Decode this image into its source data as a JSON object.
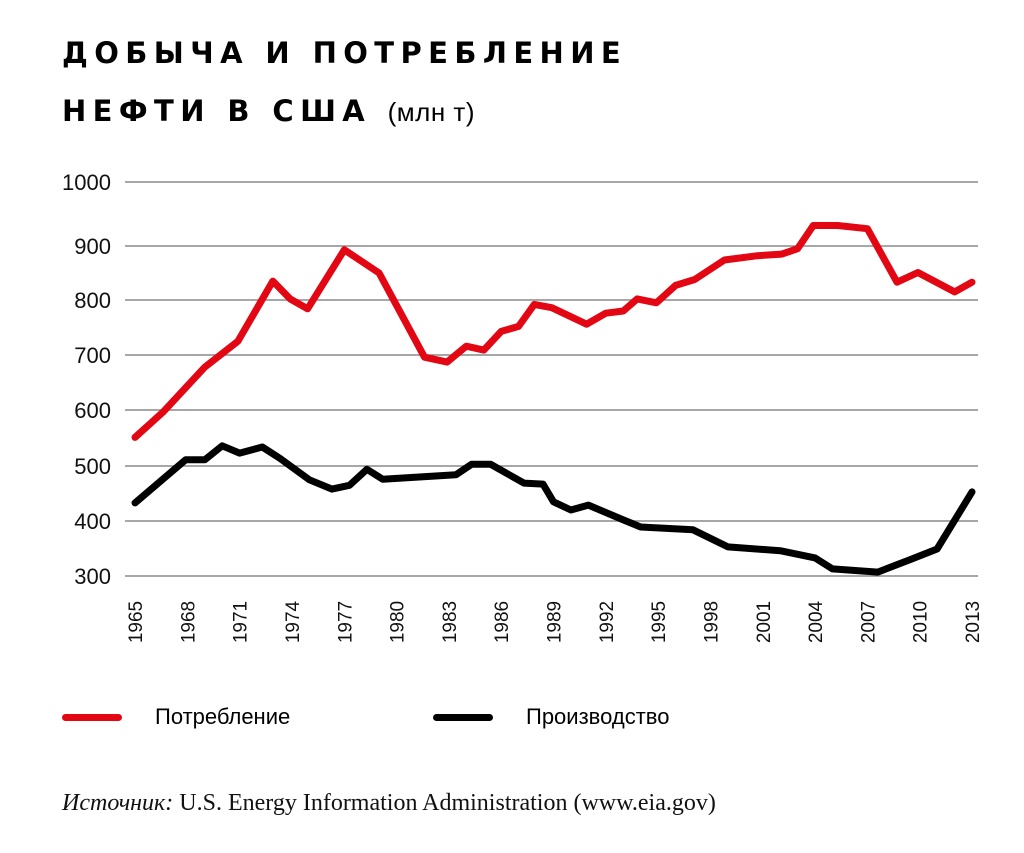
{
  "title": {
    "line1": "ДОБЫЧА И ПОТРЕБЛЕНИЕ",
    "line2": "НЕФТИ В США",
    "unit": "(млн т)"
  },
  "source": {
    "lead": "Источник:",
    "text": " U.S. Energy Information Administration (www.eia.gov)"
  },
  "colors": {
    "consumption": "#e30613",
    "production": "#000000",
    "grid": "#8a8a8a"
  },
  "chart_data": {
    "type": "line",
    "title": "Добыча и потребление нефти в США (млн т)",
    "xlabel": "",
    "ylabel": "",
    "xlim": [
      1965,
      2013
    ],
    "ylim": [
      300,
      1000
    ],
    "grid": true,
    "legend_position": "bottom",
    "y_ticks": [
      1000,
      900,
      800,
      700,
      600,
      500,
      400,
      300
    ],
    "x_ticks": [
      1965,
      1968,
      1971,
      1974,
      1977,
      1980,
      1983,
      1986,
      1989,
      1992,
      1995,
      1998,
      2001,
      2004,
      2007,
      2010,
      2013
    ],
    "series": [
      {
        "name": "Потребление",
        "color": "#e30613",
        "points": [
          [
            1965,
            551
          ],
          [
            1966.6,
            596
          ],
          [
            1969,
            678
          ],
          [
            1970.9,
            725
          ],
          [
            1972.9,
            835
          ],
          [
            1973.9,
            802
          ],
          [
            1974.9,
            784
          ],
          [
            1977,
            893
          ],
          [
            1979,
            850
          ],
          [
            1981.6,
            696
          ],
          [
            1982.9,
            687
          ],
          [
            1984,
            716
          ],
          [
            1985,
            709
          ],
          [
            1986,
            743
          ],
          [
            1987,
            752
          ],
          [
            1987.9,
            792
          ],
          [
            1988.9,
            786
          ],
          [
            1990.9,
            756
          ],
          [
            1992,
            776
          ],
          [
            1993,
            780
          ],
          [
            1993.8,
            802
          ],
          [
            1994.9,
            795
          ],
          [
            1996,
            827
          ],
          [
            1997.1,
            838
          ],
          [
            1998.8,
            874
          ],
          [
            2000.7,
            882
          ],
          [
            2002.1,
            885
          ],
          [
            2003,
            895
          ],
          [
            2003.9,
            932
          ],
          [
            2005.3,
            932
          ],
          [
            2007,
            927
          ],
          [
            2008.7,
            833
          ],
          [
            2009.9,
            851
          ],
          [
            2012,
            815
          ],
          [
            2013,
            833
          ]
        ]
      },
      {
        "name": "Производство",
        "color": "#000000",
        "points": [
          [
            1965,
            433
          ],
          [
            1967.9,
            511
          ],
          [
            1969,
            511
          ],
          [
            1970,
            536
          ],
          [
            1971,
            523
          ],
          [
            1972.3,
            534
          ],
          [
            1973.3,
            514
          ],
          [
            1975,
            475
          ],
          [
            1976.3,
            458
          ],
          [
            1977.3,
            465
          ],
          [
            1978.3,
            494
          ],
          [
            1979.2,
            476
          ],
          [
            1983.4,
            484
          ],
          [
            1984.3,
            503
          ],
          [
            1985.4,
            503
          ],
          [
            1987.3,
            469
          ],
          [
            1988.4,
            467
          ],
          [
            1989,
            435
          ],
          [
            1990,
            420
          ],
          [
            1991,
            429
          ],
          [
            1993,
            402
          ],
          [
            1994,
            389
          ],
          [
            1997,
            384
          ],
          [
            1999,
            353
          ],
          [
            2002,
            346
          ],
          [
            2004,
            333
          ],
          [
            2005,
            313
          ],
          [
            2007.6,
            307
          ],
          [
            2009.4,
            329
          ],
          [
            2011,
            349
          ],
          [
            2013,
            453
          ]
        ]
      }
    ]
  }
}
